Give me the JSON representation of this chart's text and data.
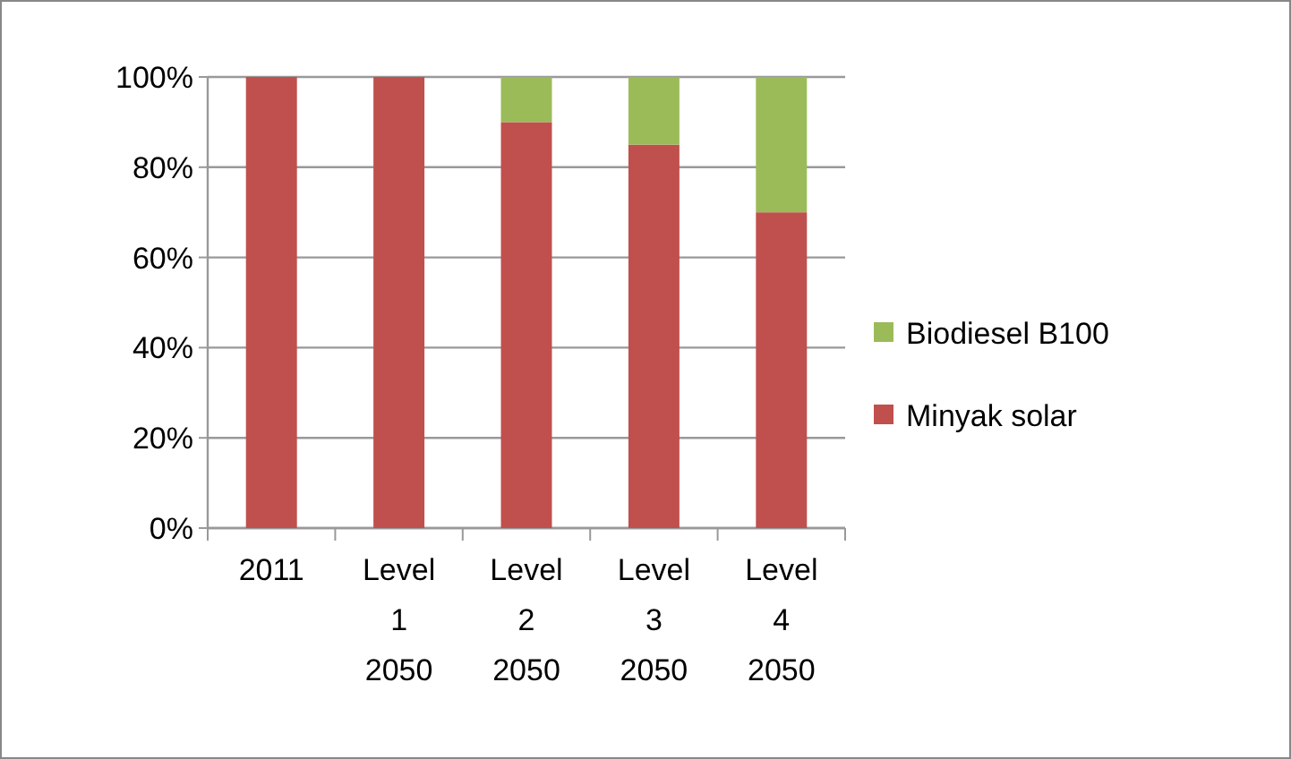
{
  "chart_data": {
    "type": "bar",
    "stacked": true,
    "categories": [
      "2011",
      "Level 1 2050",
      "Level 2 2050",
      "Level 3 2050",
      "Level 4 2050"
    ],
    "series": [
      {
        "name": "Minyak solar",
        "color": "#c0504d",
        "values": [
          100,
          100,
          90,
          85,
          70
        ]
      },
      {
        "name": "Biodiesel B100",
        "color": "#9bbb59",
        "values": [
          0,
          0,
          10,
          15,
          30
        ]
      }
    ],
    "ylim": [
      0,
      100
    ],
    "yticks": [
      {
        "value": 0,
        "label": "0%"
      },
      {
        "value": 20,
        "label": "20%"
      },
      {
        "value": 40,
        "label": "40%"
      },
      {
        "value": 60,
        "label": "60%"
      },
      {
        "value": 80,
        "label": "80%"
      },
      {
        "value": 100,
        "label": "100%"
      }
    ],
    "grid": "y",
    "legend": "right"
  }
}
